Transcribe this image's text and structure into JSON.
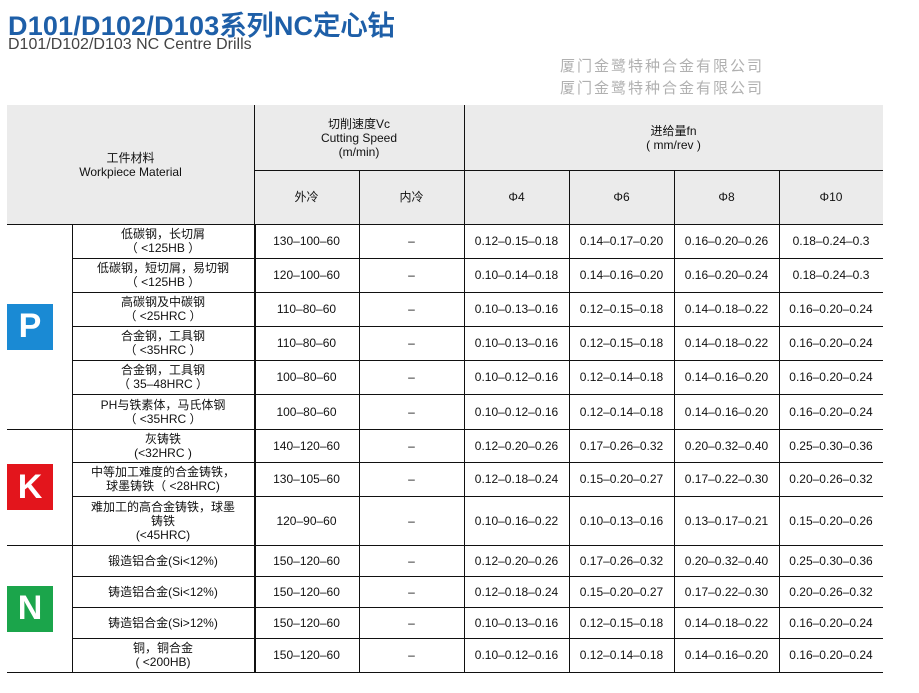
{
  "title": "D101/D102/D103系列NC定心钻",
  "subtitle": "D101/D102/D103 NC Centre Drills",
  "header": {
    "material_cn": "工件材料",
    "material_en": "Workpiece Material",
    "speed_cn": "切削速度Vc",
    "speed_en": "Cutting Speed",
    "speed_unit": "(m/min)",
    "external_cooling": "外冷",
    "internal_cooling": "内冷",
    "feed_cn": "进给量fn",
    "feed_unit": "( mm/rev )",
    "diameters": [
      "Φ4",
      "Φ6",
      "Φ8",
      "Φ10"
    ]
  },
  "groups": [
    {
      "badge": "P",
      "color": "#1a8ad4",
      "rows": [
        {
          "material": [
            "低碳钢，长切屑",
            "（ <125HB ）"
          ],
          "ext": "130–100–60",
          "int": "–",
          "feeds": [
            "0.12–0.15–0.18",
            "0.14–0.17–0.20",
            "0.16–0.20–0.26",
            "0.18–0.24–0.3"
          ]
        },
        {
          "material": [
            "低碳钢，短切屑，易切钢",
            "（ <125HB ）"
          ],
          "ext": "120–100–60",
          "int": "–",
          "feeds": [
            "0.10–0.14–0.18",
            "0.14–0.16–0.20",
            "0.16–0.20–0.24",
            "0.18–0.24–0.3"
          ]
        },
        {
          "material": [
            "高碳钢及中碳钢",
            "（ <25HRC ）"
          ],
          "ext": "110–80–60",
          "int": "–",
          "feeds": [
            "0.10–0.13–0.16",
            "0.12–0.15–0.18",
            "0.14–0.18–0.22",
            "0.16–0.20–0.24"
          ]
        },
        {
          "material": [
            "合金钢，工具钢",
            "（ <35HRC ）"
          ],
          "ext": "110–80–60",
          "int": "–",
          "feeds": [
            "0.10–0.13–0.16",
            "0.12–0.15–0.18",
            "0.14–0.18–0.22",
            "0.16–0.20–0.24"
          ]
        },
        {
          "material": [
            "合金钢，工具钢",
            "（ 35–48HRC ）"
          ],
          "ext": "100–80–60",
          "int": "–",
          "feeds": [
            "0.10–0.12–0.16",
            "0.12–0.14–0.18",
            "0.14–0.16–0.20",
            "0.16–0.20–0.24"
          ]
        },
        {
          "material": [
            "PH与铁素体，马氏体钢",
            "（ <35HRC ）"
          ],
          "ext": "100–80–60",
          "int": "–",
          "feeds": [
            "0.10–0.12–0.16",
            "0.12–0.14–0.18",
            "0.14–0.16–0.20",
            "0.16–0.20–0.24"
          ]
        }
      ]
    },
    {
      "badge": "K",
      "color": "#e3151c",
      "rows": [
        {
          "material": [
            "灰铸铁",
            "(<32HRC )"
          ],
          "ext": "140–120–60",
          "int": "–",
          "feeds": [
            "0.12–0.20–0.26",
            "0.17–0.26–0.32",
            "0.20–0.32–0.40",
            "0.25–0.30–0.36"
          ]
        },
        {
          "material": [
            "中等加工难度的合金铸铁，",
            "球墨铸铁（ <28HRC)"
          ],
          "ext": "130–105–60",
          "int": "–",
          "feeds": [
            "0.12–0.18–0.24",
            "0.15–0.20–0.27",
            "0.17–0.22–0.30",
            "0.20–0.26–0.32"
          ]
        },
        {
          "material": [
            "难加工的高合金铸铁，球墨",
            "铸铁",
            "(<45HRC)"
          ],
          "ext": "120–90–60",
          "int": "–",
          "feeds": [
            "0.10–0.16–0.22",
            "0.10–0.13–0.16",
            "0.13–0.17–0.21",
            "0.15–0.20–0.26"
          ]
        }
      ]
    },
    {
      "badge": "N",
      "color": "#1ba54b",
      "rows": [
        {
          "material": [
            "锻造铝合金(Si<12%)"
          ],
          "ext": "150–120–60",
          "int": "–",
          "feeds": [
            "0.12–0.20–0.26",
            "0.17–0.26–0.32",
            "0.20–0.32–0.40",
            "0.25–0.30–0.36"
          ]
        },
        {
          "material": [
            "铸造铝合金(Si<12%)"
          ],
          "ext": "150–120–60",
          "int": "–",
          "feeds": [
            "0.12–0.18–0.24",
            "0.15–0.20–0.27",
            "0.17–0.22–0.30",
            "0.20–0.26–0.32"
          ]
        },
        {
          "material": [
            "铸造铝合金(Si>12%)"
          ],
          "ext": "150–120–60",
          "int": "–",
          "feeds": [
            "0.10–0.13–0.16",
            "0.12–0.15–0.18",
            "0.14–0.18–0.22",
            "0.16–0.20–0.24"
          ]
        },
        {
          "material": [
            "铜，铜合金",
            "( <200HB)"
          ],
          "ext": "150–120–60",
          "int": "–",
          "feeds": [
            "0.10–0.12–0.16",
            "0.12–0.14–0.18",
            "0.14–0.16–0.20",
            "0.16–0.20–0.24"
          ]
        }
      ]
    }
  ],
  "watermark": "厦门金鹭特种合金有限公司"
}
